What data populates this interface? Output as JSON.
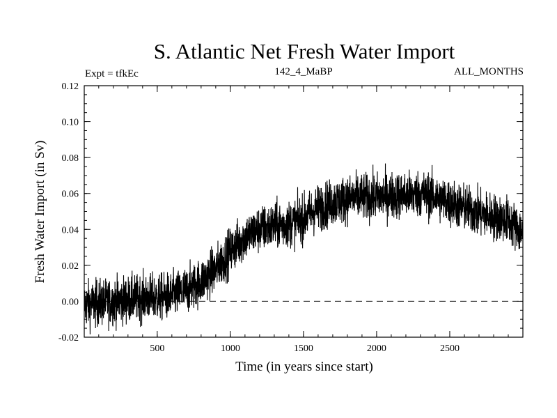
{
  "chart_data": {
    "type": "line",
    "title": "S. Atlantic Net Fresh Water Import",
    "annotations": {
      "left": "Expt = tfkEc",
      "center": "142_4_MaBP",
      "right": "ALL_MONTHS"
    },
    "xlabel": "Time (in years since start)",
    "ylabel": "Fresh Water Import (in Sv)",
    "xlim": [
      1,
      3000
    ],
    "ylim": [
      -0.02,
      0.12
    ],
    "x_ticks": [
      500,
      1000,
      1500,
      2000,
      2500
    ],
    "y_ticks": [
      "-0.02",
      "0.00",
      "0.02",
      "0.04",
      "0.06",
      "0.08",
      "0.10",
      "0.12"
    ],
    "grid": false,
    "reference_line": {
      "y": 0.0,
      "style": "dashed"
    },
    "series": [
      {
        "x": [
          1,
          100,
          200,
          300,
          400,
          500,
          600,
          700,
          800,
          900,
          1000,
          1100,
          1200,
          1300,
          1400,
          1500,
          1600,
          1700,
          1800,
          1900,
          2000,
          2100,
          2200,
          2300,
          2400,
          2500,
          2600,
          2700,
          2800,
          2900,
          3000
        ],
        "y": [
          -0.002,
          -0.001,
          0.0,
          0.001,
          0.002,
          0.002,
          0.003,
          0.006,
          0.011,
          0.018,
          0.028,
          0.036,
          0.04,
          0.042,
          0.043,
          0.046,
          0.052,
          0.055,
          0.057,
          0.058,
          0.058,
          0.059,
          0.059,
          0.06,
          0.058,
          0.055,
          0.052,
          0.049,
          0.047,
          0.045,
          0.038
        ]
      }
    ]
  }
}
